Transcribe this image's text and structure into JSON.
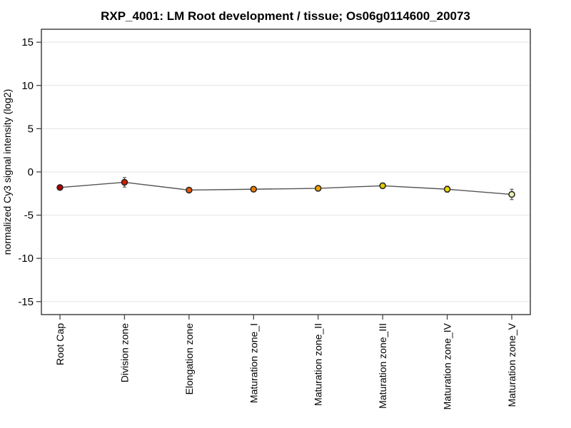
{
  "chart_data": {
    "type": "line",
    "title": "RXP_4001: LM Root development / tissue; Os06g0114600_20073",
    "xlabel": "",
    "ylabel": "normalized Cy3 signal intensity (log2)",
    "ylim": [
      -16.5,
      16.5
    ],
    "yticks": [
      15,
      10,
      5,
      0,
      -5,
      -10,
      -15
    ],
    "grid": true,
    "legend": "none",
    "categories": [
      "Root Cap",
      "Division zone",
      "Elongation zone",
      "Maturation zone_I",
      "Maturation zone_II",
      "Maturation zone_III",
      "Maturation zone_IV",
      "Maturation zone_V"
    ],
    "series": [
      {
        "name": "normalized Cy3 signal intensity (log2)",
        "values": [
          -1.8,
          -1.2,
          -2.1,
          -2.0,
          -1.9,
          -1.6,
          -2.0,
          -2.6
        ],
        "error_bars": [
          0.15,
          0.55,
          0.2,
          0.3,
          0.3,
          0.3,
          0.35,
          0.6
        ],
        "point_colors": [
          "#b00000",
          "#d81c00",
          "#e45800",
          "#ec7c00",
          "#f0a000",
          "#e2c800",
          "#ecd800",
          "#eeeeb0"
        ]
      }
    ],
    "colors": {
      "line": "#555555",
      "marker_stroke": "#222222",
      "error_bar": "#555555",
      "frame": "#444444",
      "tick": "#444444",
      "grid": "#e4e4e4",
      "background": "#ffffff",
      "title_text": "#000000",
      "label_text": "#000000"
    }
  }
}
